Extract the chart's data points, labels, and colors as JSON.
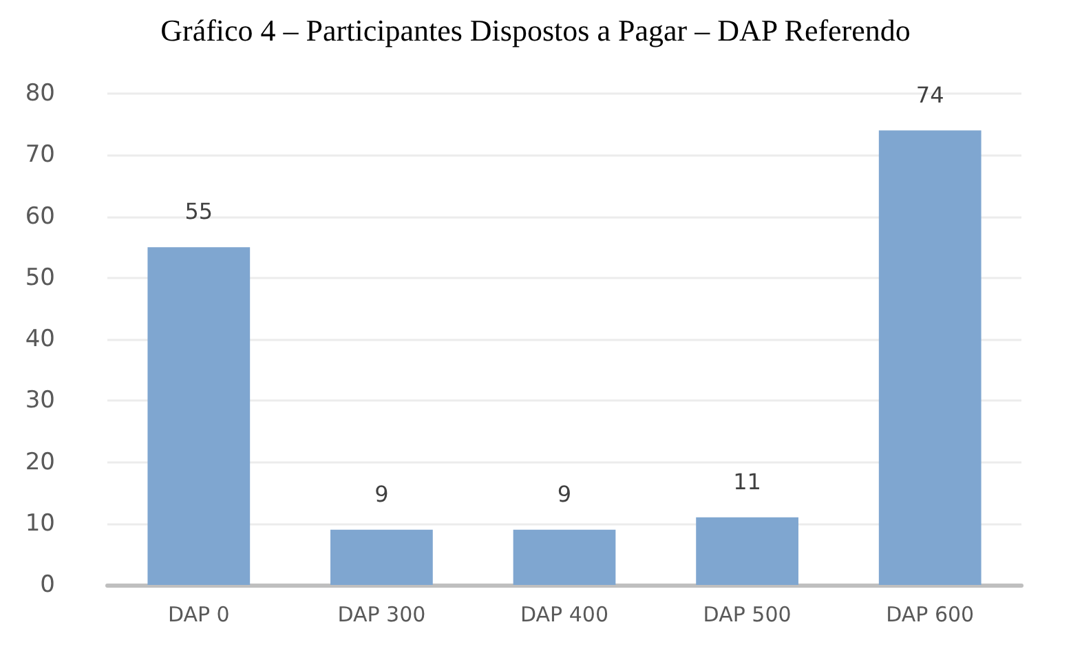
{
  "chart_data": {
    "type": "bar",
    "title": "Gráfico 4 – Participantes Dispostos a Pagar – DAP Referendo",
    "categories": [
      "DAP 0",
      "DAP 300",
      "DAP 400",
      "DAP 500",
      "DAP 600"
    ],
    "values": [
      55,
      9,
      9,
      11,
      74
    ],
    "color": "#7fa6d0",
    "ylim": [
      0,
      80
    ],
    "yticks": [
      0,
      10,
      20,
      30,
      40,
      50,
      60,
      70,
      80
    ],
    "grid": "y",
    "data_labels": true
  }
}
